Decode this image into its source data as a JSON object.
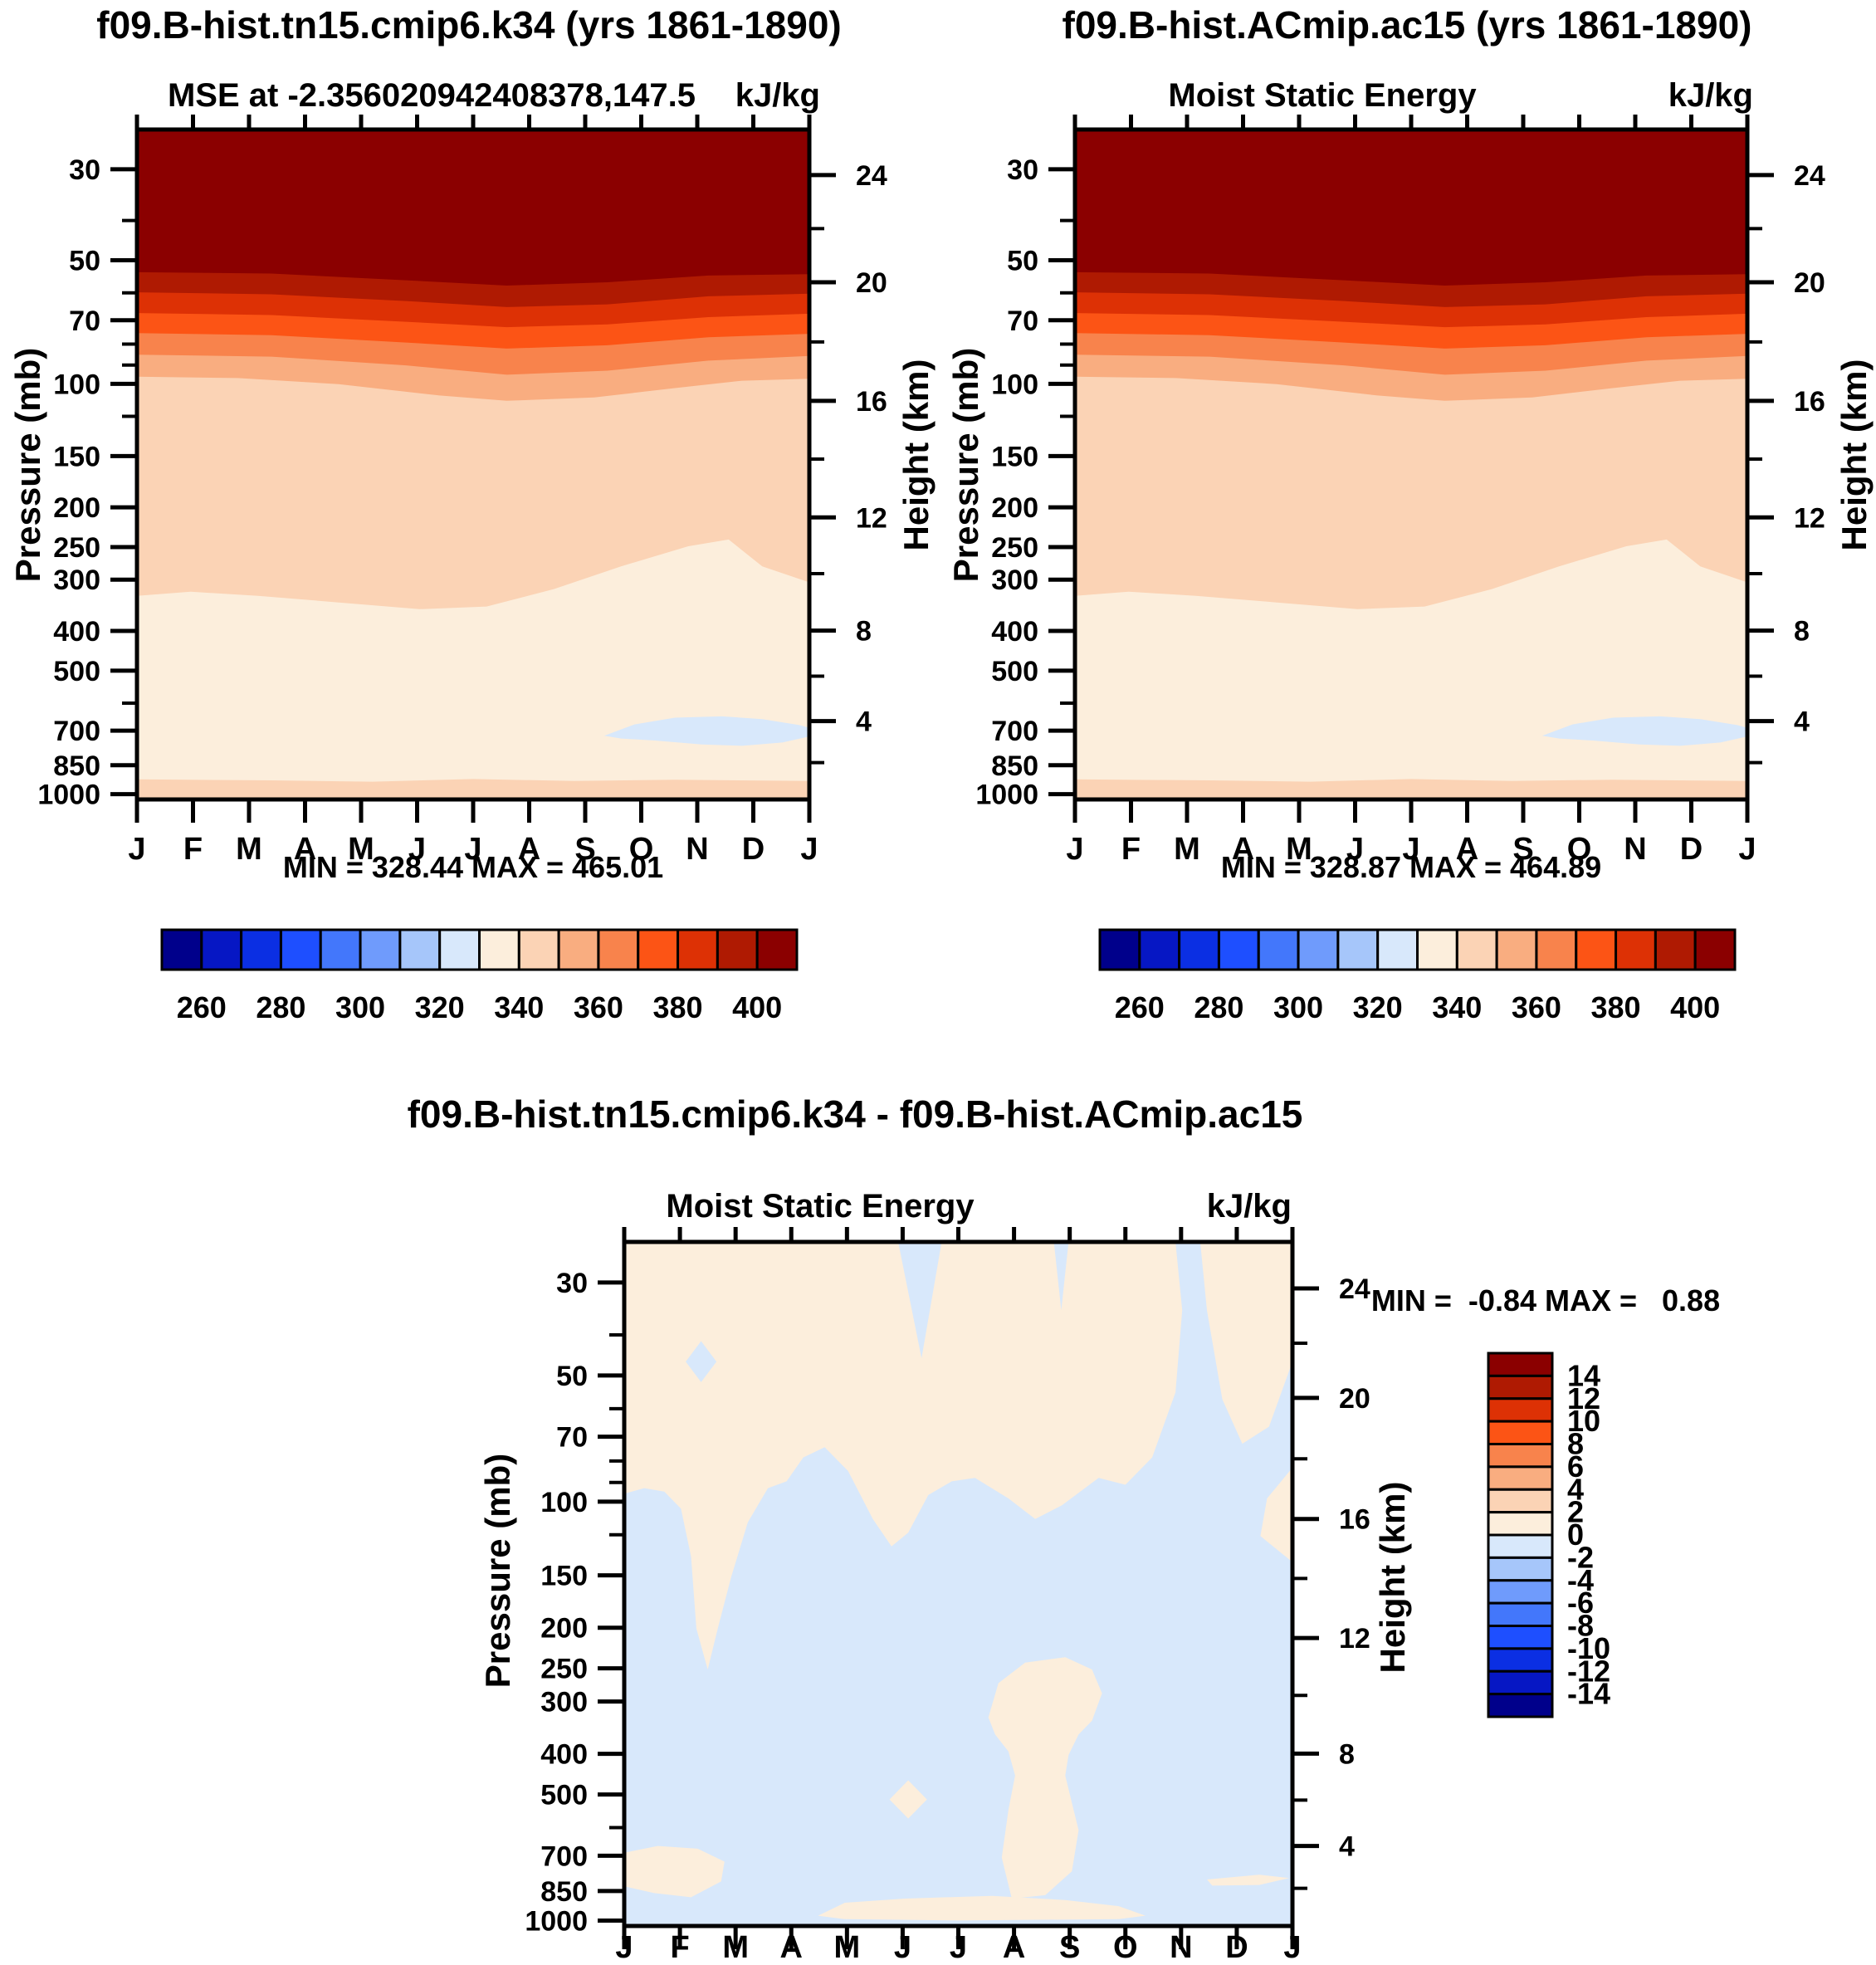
{
  "figure": {
    "kind": "AMWG-style model comparison: annual cycle of Moist Static Energy vs pressure",
    "background": "#ffffff",
    "text_color": "#000000"
  },
  "axes": {
    "pressure_label": "Pressure (mb)",
    "height_label": "Height (km)",
    "month_labels": [
      "J",
      "F",
      "M",
      "A",
      "M",
      "J",
      "J",
      "A",
      "S",
      "O",
      "N",
      "D",
      "J"
    ],
    "pressure_ticks": [
      "30",
      "50",
      "70",
      "100",
      "150",
      "200",
      "250",
      "300",
      "400",
      "500",
      "700",
      "850",
      "1000"
    ],
    "pressure_minor_ticks": [
      40,
      60,
      80,
      90,
      120,
      600
    ],
    "height_ticks": [
      "24",
      "20",
      "16",
      "12",
      "8",
      "4"
    ]
  },
  "colorbars": {
    "palette": [
      "#00008B",
      "#0617C4",
      "#0B2FE3",
      "#1E4FFF",
      "#4377FB",
      "#6F9BFC",
      "#A6C6FA",
      "#D8E8FB",
      "#FCEEDC",
      "#FBD3B5",
      "#F9AD80",
      "#F8834C",
      "#FC5415",
      "#DD3105",
      "#AF1A02",
      "#8B0000"
    ],
    "mse_labels": [
      "260",
      "280",
      "300",
      "320",
      "340",
      "360",
      "380",
      "400"
    ],
    "diff_labels": [
      "14",
      "12",
      "10",
      "8",
      "6",
      "4",
      "2",
      "0",
      "-2",
      "-4",
      "-6",
      "-8",
      "-10",
      "-12",
      "-14"
    ]
  },
  "panels": [
    {
      "id": "top-left",
      "title": "f09.B-hist.tn15.cmip6.k34 (yrs 1861-1890)",
      "subtitle": "MSE at -2.356020942408378,147.5",
      "units": "kJ/kg",
      "stats": "MIN = 328.44 MAX = 465.01"
    },
    {
      "id": "top-right",
      "title": "f09.B-hist.ACmip.ac15 (yrs 1861-1890)",
      "subtitle": "Moist Static Energy",
      "units": "kJ/kg",
      "stats": "MIN = 328.87 MAX = 464.89"
    },
    {
      "id": "bottom-difference",
      "title": "f09.B-hist.tn15.cmip6.k34 - f09.B-hist.ACmip.ac15",
      "subtitle": "Moist Static Energy",
      "units": "kJ/kg",
      "stats": "MIN =  -0.84 MAX =   0.88"
    }
  ],
  "chart_data": [
    {
      "type": "heatmap",
      "subtype": "filled-contour",
      "title": "f09.B-hist.tn15.cmip6.k34 (yrs 1861-1890)",
      "subtitle": "MSE at -2.356020942408378,147.5",
      "units": "kJ/kg",
      "xlabel": "month",
      "ylabel": "Pressure (mb)",
      "y2label": "Height (km)",
      "x": [
        "J",
        "F",
        "M",
        "A",
        "M",
        "J",
        "J",
        "A",
        "S",
        "O",
        "N",
        "D",
        "J"
      ],
      "y_pressure_mb": [
        30,
        50,
        70,
        100,
        150,
        200,
        250,
        300,
        400,
        500,
        700,
        850,
        1000
      ],
      "y_axis_scale": "log, inverted (30 mb top, 1000 mb bottom)",
      "height_axis_km": [
        24,
        20,
        16,
        12,
        8,
        4
      ],
      "contour_levels": [
        250,
        260,
        270,
        280,
        290,
        300,
        310,
        320,
        330,
        340,
        350,
        360,
        370,
        380,
        390,
        400,
        410
      ],
      "min": 328.44,
      "max": 465.01,
      "legend_position": "horizontal colorbar below, labels 260-400 every 20",
      "grid": false,
      "values": [
        [
          438,
          438,
          437,
          436,
          435,
          434,
          433,
          433,
          434,
          435,
          436,
          437,
          438
        ],
        [
          399,
          399,
          398,
          397,
          396,
          394,
          393,
          393,
          394,
          396,
          397,
          398,
          399
        ],
        [
          370,
          370,
          369,
          368,
          366,
          365,
          364,
          364,
          365,
          367,
          368,
          369,
          370
        ],
        [
          352,
          352,
          351,
          350,
          349,
          348,
          347,
          347,
          348,
          349,
          350,
          351,
          352
        ],
        [
          346,
          346,
          346,
          345,
          345,
          344,
          344,
          344,
          344,
          345,
          345,
          346,
          346
        ],
        [
          345,
          345,
          345,
          344,
          344,
          343,
          343,
          343,
          343,
          344,
          344,
          345,
          345
        ],
        [
          343,
          343,
          343,
          342,
          342,
          342,
          341,
          341,
          342,
          342,
          343,
          343,
          343
        ],
        [
          340,
          340,
          340,
          339,
          339,
          339,
          339,
          339,
          340,
          341,
          341,
          340,
          340
        ],
        [
          337,
          337,
          337,
          337,
          336,
          336,
          336,
          336,
          337,
          338,
          338,
          337,
          337
        ],
        [
          335,
          335,
          335,
          335,
          335,
          334,
          334,
          334,
          335,
          336,
          336,
          335,
          335
        ],
        [
          333,
          333,
          333,
          333,
          333,
          333,
          332,
          331,
          330,
          329,
          329,
          330,
          332
        ],
        [
          336,
          336,
          336,
          336,
          336,
          335,
          335,
          335,
          335,
          335,
          336,
          336,
          336
        ],
        [
          345,
          345,
          345,
          344,
          344,
          344,
          344,
          344,
          344,
          345,
          345,
          345,
          345
        ]
      ]
    },
    {
      "type": "heatmap",
      "subtype": "filled-contour",
      "title": "f09.B-hist.ACmip.ac15 (yrs 1861-1890)",
      "subtitle": "Moist Static Energy",
      "units": "kJ/kg",
      "xlabel": "month",
      "ylabel": "Pressure (mb)",
      "y2label": "Height (km)",
      "x": [
        "J",
        "F",
        "M",
        "A",
        "M",
        "J",
        "J",
        "A",
        "S",
        "O",
        "N",
        "D",
        "J"
      ],
      "y_pressure_mb": [
        30,
        50,
        70,
        100,
        150,
        200,
        250,
        300,
        400,
        500,
        700,
        850,
        1000
      ],
      "y_axis_scale": "log, inverted (30 mb top, 1000 mb bottom)",
      "height_axis_km": [
        24,
        20,
        16,
        12,
        8,
        4
      ],
      "contour_levels": [
        250,
        260,
        270,
        280,
        290,
        300,
        310,
        320,
        330,
        340,
        350,
        360,
        370,
        380,
        390,
        400,
        410
      ],
      "min": 328.87,
      "max": 464.89,
      "legend_position": "horizontal colorbar below, labels 260-400 every 20",
      "grid": false,
      "values": [
        [
          438,
          438,
          437,
          436,
          435,
          434,
          433,
          433,
          434,
          435,
          436,
          437,
          438
        ],
        [
          399,
          399,
          398,
          397,
          396,
          394,
          393,
          393,
          394,
          396,
          397,
          398,
          399
        ],
        [
          370,
          370,
          369,
          368,
          366,
          365,
          364,
          364,
          365,
          367,
          368,
          369,
          370
        ],
        [
          352,
          352,
          351,
          350,
          349,
          348,
          347,
          347,
          348,
          349,
          350,
          351,
          352
        ],
        [
          346,
          346,
          346,
          345,
          345,
          344,
          344,
          344,
          344,
          345,
          345,
          346,
          346
        ],
        [
          345,
          345,
          345,
          344,
          344,
          343,
          343,
          343,
          343,
          344,
          344,
          345,
          345
        ],
        [
          343,
          343,
          343,
          342,
          342,
          342,
          341,
          341,
          342,
          342,
          343,
          343,
          343
        ],
        [
          340,
          340,
          340,
          339,
          339,
          339,
          339,
          339,
          340,
          341,
          341,
          340,
          340
        ],
        [
          337,
          337,
          337,
          337,
          336,
          336,
          336,
          336,
          337,
          338,
          338,
          337,
          337
        ],
        [
          335,
          335,
          335,
          335,
          335,
          334,
          334,
          334,
          335,
          336,
          336,
          335,
          335
        ],
        [
          333,
          333,
          333,
          333,
          333,
          333,
          332,
          331,
          330,
          329,
          329,
          330,
          332
        ],
        [
          336,
          336,
          336,
          336,
          336,
          335,
          335,
          335,
          335,
          335,
          336,
          336,
          336
        ],
        [
          345,
          345,
          345,
          344,
          344,
          344,
          344,
          344,
          344,
          345,
          345,
          345,
          345
        ]
      ]
    },
    {
      "type": "heatmap",
      "subtype": "filled-contour-difference",
      "title": "f09.B-hist.tn15.cmip6.k34 - f09.B-hist.ACmip.ac15",
      "subtitle": "Moist Static Energy",
      "units": "kJ/kg",
      "xlabel": "month",
      "ylabel": "Pressure (mb)",
      "y2label": "Height (km)",
      "x": [
        "J",
        "F",
        "M",
        "A",
        "M",
        "J",
        "J",
        "A",
        "S",
        "O",
        "N",
        "D",
        "J"
      ],
      "y_pressure_mb": [
        30,
        50,
        70,
        100,
        150,
        200,
        250,
        300,
        400,
        500,
        700,
        850,
        1000
      ],
      "y_axis_scale": "log, inverted (30 mb top, 1000 mb bottom)",
      "height_axis_km": [
        24,
        20,
        16,
        12,
        8,
        4
      ],
      "contour_levels": [
        -16,
        -14,
        -12,
        -10,
        -8,
        -6,
        -4,
        -2,
        0,
        2,
        4,
        6,
        8,
        10,
        12,
        14,
        16
      ],
      "min": -0.84,
      "max": 0.88,
      "legend_position": "vertical colorbar at right, labels -14 to 14 every 2",
      "grid": false,
      "values": [
        [
          0.3,
          0.3,
          0.3,
          0.2,
          -0.2,
          0.3,
          0.2,
          -0.3,
          0.3,
          -0.3,
          -0.2,
          0.3,
          0.3
        ],
        [
          0.3,
          0.3,
          0.3,
          0.3,
          0.2,
          0.3,
          0.3,
          0.4,
          0.2,
          -0.3,
          -0.2,
          0.2,
          0.3
        ],
        [
          0.3,
          -0.2,
          0.3,
          0.3,
          0.3,
          0.3,
          0.4,
          0.4,
          0.3,
          -0.2,
          -0.3,
          0.3,
          0.2
        ],
        [
          0.1,
          0.3,
          0.2,
          0.2,
          0.2,
          0.3,
          0.3,
          0.3,
          0.2,
          -0.2,
          -0.3,
          -0.2,
          -0.1
        ],
        [
          -0.2,
          0.3,
          -0.1,
          -0.2,
          -0.1,
          -0.2,
          -0.2,
          -0.2,
          -0.3,
          -0.3,
          -0.3,
          -0.3,
          -0.2
        ],
        [
          -0.2,
          0.2,
          -0.2,
          -0.3,
          -0.3,
          -0.3,
          -0.3,
          -0.3,
          -0.3,
          -0.4,
          -0.3,
          -0.3,
          -0.2
        ],
        [
          -0.3,
          0.1,
          -0.3,
          -0.3,
          -0.3,
          -0.3,
          -0.3,
          -0.3,
          -0.4,
          -0.4,
          -0.3,
          -0.3,
          -0.3
        ],
        [
          -0.3,
          -0.2,
          -0.3,
          -0.3,
          -0.3,
          -0.3,
          -0.3,
          -0.4,
          -0.4,
          -0.4,
          -0.3,
          -0.3,
          -0.3
        ],
        [
          -0.3,
          -0.3,
          -0.3,
          -0.3,
          -0.3,
          -0.3,
          -0.3,
          -0.2,
          0.1,
          -0.2,
          -0.3,
          -0.3,
          -0.3
        ],
        [
          -0.3,
          -0.3,
          -0.3,
          -0.3,
          -0.3,
          -0.3,
          -0.2,
          0.2,
          0.3,
          -0.2,
          -0.3,
          -0.3,
          -0.3
        ],
        [
          -0.2,
          -0.2,
          -0.3,
          -0.3,
          -0.3,
          0.1,
          -0.2,
          0.2,
          0.3,
          -0.2,
          -0.3,
          -0.3,
          -0.2
        ],
        [
          0.2,
          0.3,
          -0.1,
          -0.2,
          -0.2,
          -0.2,
          -0.2,
          0.1,
          0.2,
          -0.2,
          -0.3,
          -0.1,
          -0.2
        ],
        [
          0.2,
          0.2,
          0.1,
          0.1,
          -0.1,
          0.1,
          0.1,
          0.2,
          0.2,
          0.1,
          -0.1,
          0.1,
          -0.1
        ]
      ]
    }
  ]
}
